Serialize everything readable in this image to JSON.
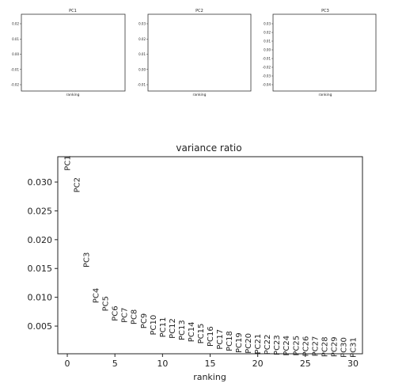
{
  "chart_data": [
    {
      "type": "scatter",
      "title": "PC1",
      "xlabel": "ranking",
      "ylabel": "",
      "y_ticks": [
        "0.02",
        "0.01",
        "0.00",
        "-0.01",
        "-0.02"
      ]
    },
    {
      "type": "scatter",
      "title": "PC2",
      "xlabel": "ranking",
      "ylabel": "",
      "y_ticks": [
        "0.03",
        "0.02",
        "0.01",
        "0.00",
        "-0.01"
      ]
    },
    {
      "type": "scatter",
      "title": "PC3",
      "xlabel": "ranking",
      "ylabel": "",
      "y_ticks": [
        "0.03",
        "0.02",
        "0.01",
        "0.00",
        "-0.01",
        "-0.02",
        "-0.03",
        "-0.04"
      ]
    },
    {
      "type": "scatter",
      "title": "variance ratio",
      "xlabel": "ranking",
      "ylabel": "",
      "xlim": [
        -1,
        31
      ],
      "ylim": [
        0.0002,
        0.0344
      ],
      "x_ticks": [
        0,
        5,
        10,
        15,
        20,
        25,
        30
      ],
      "y_ticks": [
        0.005,
        0.01,
        0.015,
        0.02,
        0.025,
        0.03
      ],
      "y_tick_labels": [
        "0.005",
        "0.010",
        "0.015",
        "0.020",
        "0.025",
        "0.030"
      ],
      "grid": false,
      "labels": [
        "PC1",
        "PC2",
        "PC3",
        "PC4",
        "PC5",
        "PC6",
        "PC7",
        "PC8",
        "PC9",
        "PC10",
        "PC11",
        "PC12",
        "PC13",
        "PC14",
        "PC15",
        "PC16",
        "PC17",
        "PC18",
        "PC19",
        "PC20",
        "PC21",
        "PC22",
        "PC23",
        "PC24",
        "PC25",
        "PC26",
        "PC27",
        "PC28",
        "PC29",
        "PC30",
        "PC31"
      ],
      "x": [
        0,
        1,
        2,
        3,
        4,
        5,
        6,
        7,
        8,
        9,
        10,
        11,
        12,
        13,
        14,
        15,
        16,
        17,
        18,
        19,
        20,
        21,
        22,
        23,
        24,
        25,
        26,
        27,
        28,
        29,
        30
      ],
      "values": [
        0.0333,
        0.0295,
        0.0165,
        0.0103,
        0.0089,
        0.0072,
        0.0069,
        0.0066,
        0.0059,
        0.0052,
        0.0048,
        0.0046,
        0.0043,
        0.004,
        0.0037,
        0.0032,
        0.0027,
        0.0024,
        0.0021,
        0.002,
        0.0019,
        0.0018,
        0.0017,
        0.0016,
        0.0016,
        0.0015,
        0.0015,
        0.0014,
        0.0014,
        0.0013,
        0.0013
      ]
    }
  ]
}
